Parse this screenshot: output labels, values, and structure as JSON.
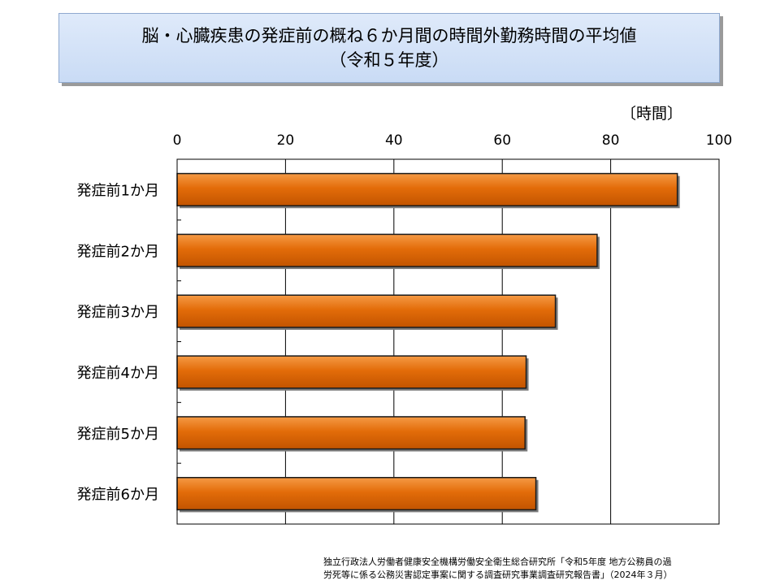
{
  "title": {
    "line1": "脳・心臓疾患の発症前の概ね６か月間の時間外勤務時間の平均値",
    "line2": "（令和５年度）"
  },
  "chart_data": {
    "type": "bar",
    "orientation": "horizontal",
    "unit_label": "〔時間〕",
    "categories": [
      "発症前1か月",
      "発症前2か月",
      "発症前3か月",
      "発症前4か月",
      "発症前5か月",
      "発症前6か月"
    ],
    "values": [
      92.3,
      77.5,
      69.8,
      64.4,
      64.2,
      66.2
    ],
    "xlim": [
      0,
      100
    ],
    "ticks": [
      "0",
      "20",
      "40",
      "60",
      "80",
      "100"
    ],
    "grid": true,
    "bar_color": "#e36c09",
    "bar_edge": "#1a1a1a"
  },
  "source": {
    "line1": "独立行政法人労働者健康安全機構労働安全衛生総合研究所「令和5年度 地方公務員の過",
    "line2": "労死等に係る公務災害認定事案に関する調査研究事業調査研究報告書」（2024年３月）"
  }
}
